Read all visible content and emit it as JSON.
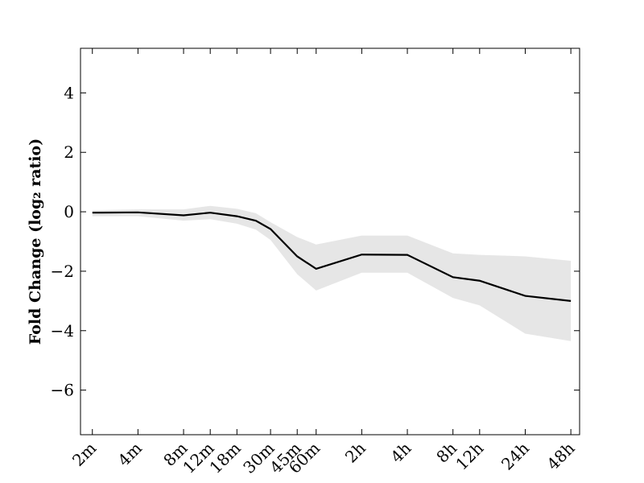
{
  "chart_data": {
    "type": "line",
    "ylabel": "Fold Change (log₂ ratio)",
    "x": [
      2,
      4,
      8,
      12,
      18,
      24,
      30,
      45,
      60,
      120,
      240,
      480,
      720,
      1440,
      2880
    ],
    "series": [
      {
        "color": "#000000",
        "values": [
          -0.03,
          -0.02,
          -0.12,
          -0.03,
          -0.15,
          -0.3,
          -0.58,
          -1.5,
          -1.92,
          -1.44,
          -1.45,
          -2.2,
          -2.32,
          -2.83,
          -3.0
        ]
      }
    ],
    "band": {
      "color": "#e6e6e6",
      "upper": [
        0.05,
        0.08,
        0.08,
        0.2,
        0.1,
        -0.05,
        -0.35,
        -0.85,
        -1.1,
        -0.8,
        -0.8,
        -1.4,
        -1.45,
        -1.5,
        -1.65
      ],
      "lower": [
        -0.15,
        -0.15,
        -0.3,
        -0.25,
        -0.4,
        -0.6,
        -0.95,
        -2.1,
        -2.65,
        -2.05,
        -2.05,
        -2.9,
        -3.15,
        -4.1,
        -4.35
      ]
    },
    "xscale": "log",
    "xlim": [
      1.67,
      3290
    ],
    "xticks": [
      {
        "value": 2,
        "label": "2m"
      },
      {
        "value": 4,
        "label": "4m"
      },
      {
        "value": 8,
        "label": "8m"
      },
      {
        "value": 12,
        "label": "12m"
      },
      {
        "value": 18,
        "label": "18m"
      },
      {
        "value": 30,
        "label": "30m"
      },
      {
        "value": 45,
        "label": "45m"
      },
      {
        "value": 60,
        "label": "60m"
      },
      {
        "value": 120,
        "label": "2h"
      },
      {
        "value": 240,
        "label": "4h"
      },
      {
        "value": 480,
        "label": "8h"
      },
      {
        "value": 720,
        "label": "12h"
      },
      {
        "value": 1440,
        "label": "24h"
      },
      {
        "value": 2880,
        "label": "48h"
      }
    ],
    "ylim": [
      -7.5,
      5.5
    ],
    "yticks": [
      {
        "value": -6,
        "label": "−6"
      },
      {
        "value": -4,
        "label": "−4"
      },
      {
        "value": -2,
        "label": "−2"
      },
      0,
      2,
      4
    ]
  }
}
